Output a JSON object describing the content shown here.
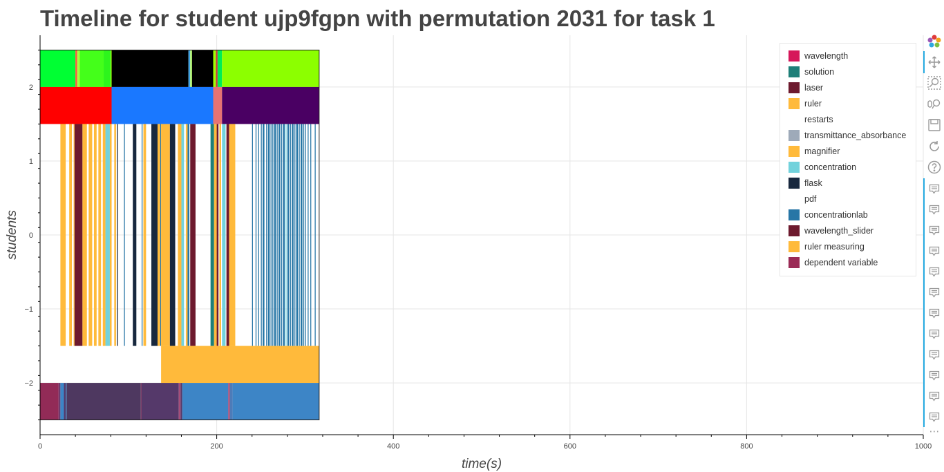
{
  "title": "Timeline for student ujp9fgpn with permutation 2031 for task 1",
  "chart_data": {
    "type": "timeline",
    "title": "Timeline for student ujp9fgpn with permutation 2031 for task 1",
    "xlabel": "time(s)",
    "ylabel": "students",
    "xlim": [
      0,
      1000
    ],
    "ylim": [
      -2.7,
      2.7
    ],
    "x_ticks": [
      0,
      200,
      400,
      600,
      800,
      1000
    ],
    "y_ticks": [
      2,
      1,
      0,
      -1,
      -2
    ],
    "y_tick_labels": [
      "2",
      "1",
      "0",
      "−1",
      "−2"
    ],
    "grid": true,
    "legend_position": "top-right",
    "legend": [
      {
        "label": "wavelength",
        "color": "#d6175a"
      },
      {
        "label": "solution",
        "color": "#1e7f78"
      },
      {
        "label": "laser",
        "color": "#6d1a2e"
      },
      {
        "label": "ruler",
        "color": "#ffba3b"
      },
      {
        "label": "restarts",
        "color": "#ffffff"
      },
      {
        "label": "transmittance_absorbance",
        "color": "#9eaab9"
      },
      {
        "label": "magnifier",
        "color": "#ffba3b"
      },
      {
        "label": "concentration",
        "color": "#72d2dc"
      },
      {
        "label": "flask",
        "color": "#18283e"
      },
      {
        "label": "pdf",
        "color": "#ffffff"
      },
      {
        "label": "concentrationlab",
        "color": "#2776a6"
      },
      {
        "label": "wavelength_slider",
        "color": "#6d1a2e"
      },
      {
        "label": "ruler measuring",
        "color": "#ffba3b"
      },
      {
        "label": "dependent variable",
        "color": "#9b2b56"
      }
    ],
    "rows": [
      {
        "y_range": [
          2.0,
          2.5
        ],
        "segments": [
          {
            "start": 0,
            "end": 40,
            "color": "#00ff33"
          },
          {
            "start": 40,
            "end": 42,
            "color": "#ff5a3c"
          },
          {
            "start": 42,
            "end": 45,
            "color": "#a6ff40"
          },
          {
            "start": 45,
            "end": 72,
            "color": "#44ff1a"
          },
          {
            "start": 72,
            "end": 80,
            "color": "#2df51c"
          },
          {
            "start": 80,
            "end": 81,
            "color": "#9dff00"
          },
          {
            "start": 81,
            "end": 168,
            "color": "#000000"
          },
          {
            "start": 168,
            "end": 170,
            "color": "#3da0e0"
          },
          {
            "start": 170,
            "end": 172,
            "color": "#b8ff6e"
          },
          {
            "start": 172,
            "end": 196,
            "color": "#000000"
          },
          {
            "start": 196,
            "end": 199,
            "color": "#9dff00"
          },
          {
            "start": 199,
            "end": 201,
            "color": "#c83a3a"
          },
          {
            "start": 201,
            "end": 206,
            "color": "#00ee55"
          },
          {
            "start": 206,
            "end": 316,
            "color": "#8cff00"
          }
        ]
      },
      {
        "y_range": [
          1.5,
          2.0
        ],
        "segments": [
          {
            "start": 0,
            "end": 81,
            "color": "#ff0000"
          },
          {
            "start": 81,
            "end": 196,
            "color": "#1a78ff"
          },
          {
            "start": 196,
            "end": 206,
            "color": "#e67373"
          },
          {
            "start": 206,
            "end": 316,
            "color": "#4a0063"
          }
        ]
      },
      {
        "y_range": [
          -1.5,
          1.5
        ],
        "segments": [
          {
            "start": 23,
            "end": 29,
            "color": "#ffba3b"
          },
          {
            "start": 33,
            "end": 36,
            "color": "#ffba3b"
          },
          {
            "start": 38,
            "end": 39,
            "color": "#ffba3b"
          },
          {
            "start": 39,
            "end": 48,
            "color": "#6d1a2e"
          },
          {
            "start": 48,
            "end": 53,
            "color": "#ffba3b"
          },
          {
            "start": 55,
            "end": 59,
            "color": "#ffba3b"
          },
          {
            "start": 61,
            "end": 64,
            "color": "#ffba3b"
          },
          {
            "start": 66,
            "end": 69,
            "color": "#ffba3b"
          },
          {
            "start": 71,
            "end": 74,
            "color": "#ffba3b"
          },
          {
            "start": 74,
            "end": 79,
            "color": "#72d2dc"
          },
          {
            "start": 79,
            "end": 81,
            "color": "#ffba3b"
          },
          {
            "start": 84,
            "end": 86,
            "color": "#ffba3b"
          },
          {
            "start": 87,
            "end": 88,
            "color": "#18283e"
          },
          {
            "start": 95,
            "end": 96,
            "color": "#2776a6"
          },
          {
            "start": 105,
            "end": 109,
            "color": "#18283e"
          },
          {
            "start": 115,
            "end": 116,
            "color": "#2776a6"
          },
          {
            "start": 117,
            "end": 120,
            "color": "#ffba3b"
          },
          {
            "start": 126,
            "end": 133,
            "color": "#18283e"
          },
          {
            "start": 133,
            "end": 136,
            "color": "#ffba3b"
          },
          {
            "start": 136,
            "end": 137,
            "color": "#2776a6"
          },
          {
            "start": 137,
            "end": 147,
            "color": "#ffba3b"
          },
          {
            "start": 147,
            "end": 153,
            "color": "#18283e"
          },
          {
            "start": 156,
            "end": 160,
            "color": "#ffba3b"
          },
          {
            "start": 160,
            "end": 163,
            "color": "#72d2dc"
          },
          {
            "start": 165,
            "end": 167,
            "color": "#ffba3b"
          },
          {
            "start": 167,
            "end": 169,
            "color": "#2776a6"
          },
          {
            "start": 170,
            "end": 176,
            "color": "#6d1a2e"
          },
          {
            "start": 193,
            "end": 197,
            "color": "#1e7f78"
          },
          {
            "start": 197,
            "end": 200,
            "color": "#ffba3b"
          },
          {
            "start": 200,
            "end": 202,
            "color": "#6d1a2e"
          },
          {
            "start": 203,
            "end": 205,
            "color": "#ffba3b"
          },
          {
            "start": 206,
            "end": 210,
            "color": "#72d2dc"
          },
          {
            "start": 211,
            "end": 214,
            "color": "#6d1a2e"
          },
          {
            "start": 214,
            "end": 221,
            "color": "#ffba3b"
          },
          {
            "start": 240,
            "end": 241,
            "color": "#2776a6"
          },
          {
            "start": 244,
            "end": 245,
            "color": "#2776a6"
          },
          {
            "start": 247,
            "end": 248,
            "color": "#2776a6"
          },
          {
            "start": 250,
            "end": 251,
            "color": "#2776a6"
          },
          {
            "start": 252,
            "end": 254,
            "color": "#2776a6"
          },
          {
            "start": 256,
            "end": 257,
            "color": "#2776a6"
          },
          {
            "start": 258,
            "end": 260,
            "color": "#2776a6"
          },
          {
            "start": 261,
            "end": 262,
            "color": "#2776a6"
          },
          {
            "start": 263,
            "end": 264,
            "color": "#2776a6"
          },
          {
            "start": 265,
            "end": 267,
            "color": "#2776a6"
          },
          {
            "start": 268,
            "end": 269,
            "color": "#2776a6"
          },
          {
            "start": 270,
            "end": 272,
            "color": "#2776a6"
          },
          {
            "start": 273,
            "end": 274,
            "color": "#2776a6"
          },
          {
            "start": 275,
            "end": 277,
            "color": "#2776a6"
          },
          {
            "start": 278,
            "end": 279,
            "color": "#72d2dc"
          },
          {
            "start": 280,
            "end": 282,
            "color": "#2776a6"
          },
          {
            "start": 283,
            "end": 284,
            "color": "#2776a6"
          },
          {
            "start": 285,
            "end": 287,
            "color": "#2776a6"
          },
          {
            "start": 288,
            "end": 289,
            "color": "#2776a6"
          },
          {
            "start": 290,
            "end": 292,
            "color": "#2776a6"
          },
          {
            "start": 293,
            "end": 294,
            "color": "#2776a6"
          },
          {
            "start": 295,
            "end": 297,
            "color": "#2776a6"
          },
          {
            "start": 298,
            "end": 299,
            "color": "#2776a6"
          },
          {
            "start": 300,
            "end": 301,
            "color": "#2776a6"
          },
          {
            "start": 303,
            "end": 304,
            "color": "#2776a6"
          },
          {
            "start": 306,
            "end": 307,
            "color": "#2776a6"
          },
          {
            "start": 311,
            "end": 312,
            "color": "#2776a6"
          }
        ]
      },
      {
        "y_range": [
          -2.0,
          -1.5
        ],
        "segments": [
          {
            "start": 137,
            "end": 316,
            "color": "#ffba3b"
          }
        ]
      },
      {
        "y_range": [
          -2.5,
          -2.0
        ],
        "segments": [
          {
            "start": 0,
            "end": 21,
            "color": "#922b57"
          },
          {
            "start": 21,
            "end": 23,
            "color": "#6e3a6e"
          },
          {
            "start": 23,
            "end": 27,
            "color": "#3d85c6"
          },
          {
            "start": 27,
            "end": 29,
            "color": "#55396a"
          },
          {
            "start": 29,
            "end": 30,
            "color": "#3d85c6"
          },
          {
            "start": 30,
            "end": 114,
            "color": "#4e3860"
          },
          {
            "start": 114,
            "end": 115,
            "color": "#7c3d66"
          },
          {
            "start": 115,
            "end": 157,
            "color": "#55396a"
          },
          {
            "start": 157,
            "end": 159,
            "color": "#a64d79"
          },
          {
            "start": 159,
            "end": 161,
            "color": "#55396a"
          },
          {
            "start": 161,
            "end": 213,
            "color": "#3d85c6"
          },
          {
            "start": 213,
            "end": 215,
            "color": "#a64d79"
          },
          {
            "start": 215,
            "end": 218,
            "color": "#4d7bb8"
          },
          {
            "start": 218,
            "end": 316,
            "color": "#3d85c6"
          }
        ]
      }
    ]
  },
  "toolbar": {
    "icons": [
      "bokeh-logo-icon",
      "pan-icon",
      "box-zoom-icon",
      "wheel-zoom-icon",
      "save-icon",
      "reset-icon",
      "help-icon",
      "hover-icon",
      "more-icon"
    ],
    "hover_count": 12,
    "more_label": "⋯"
  }
}
